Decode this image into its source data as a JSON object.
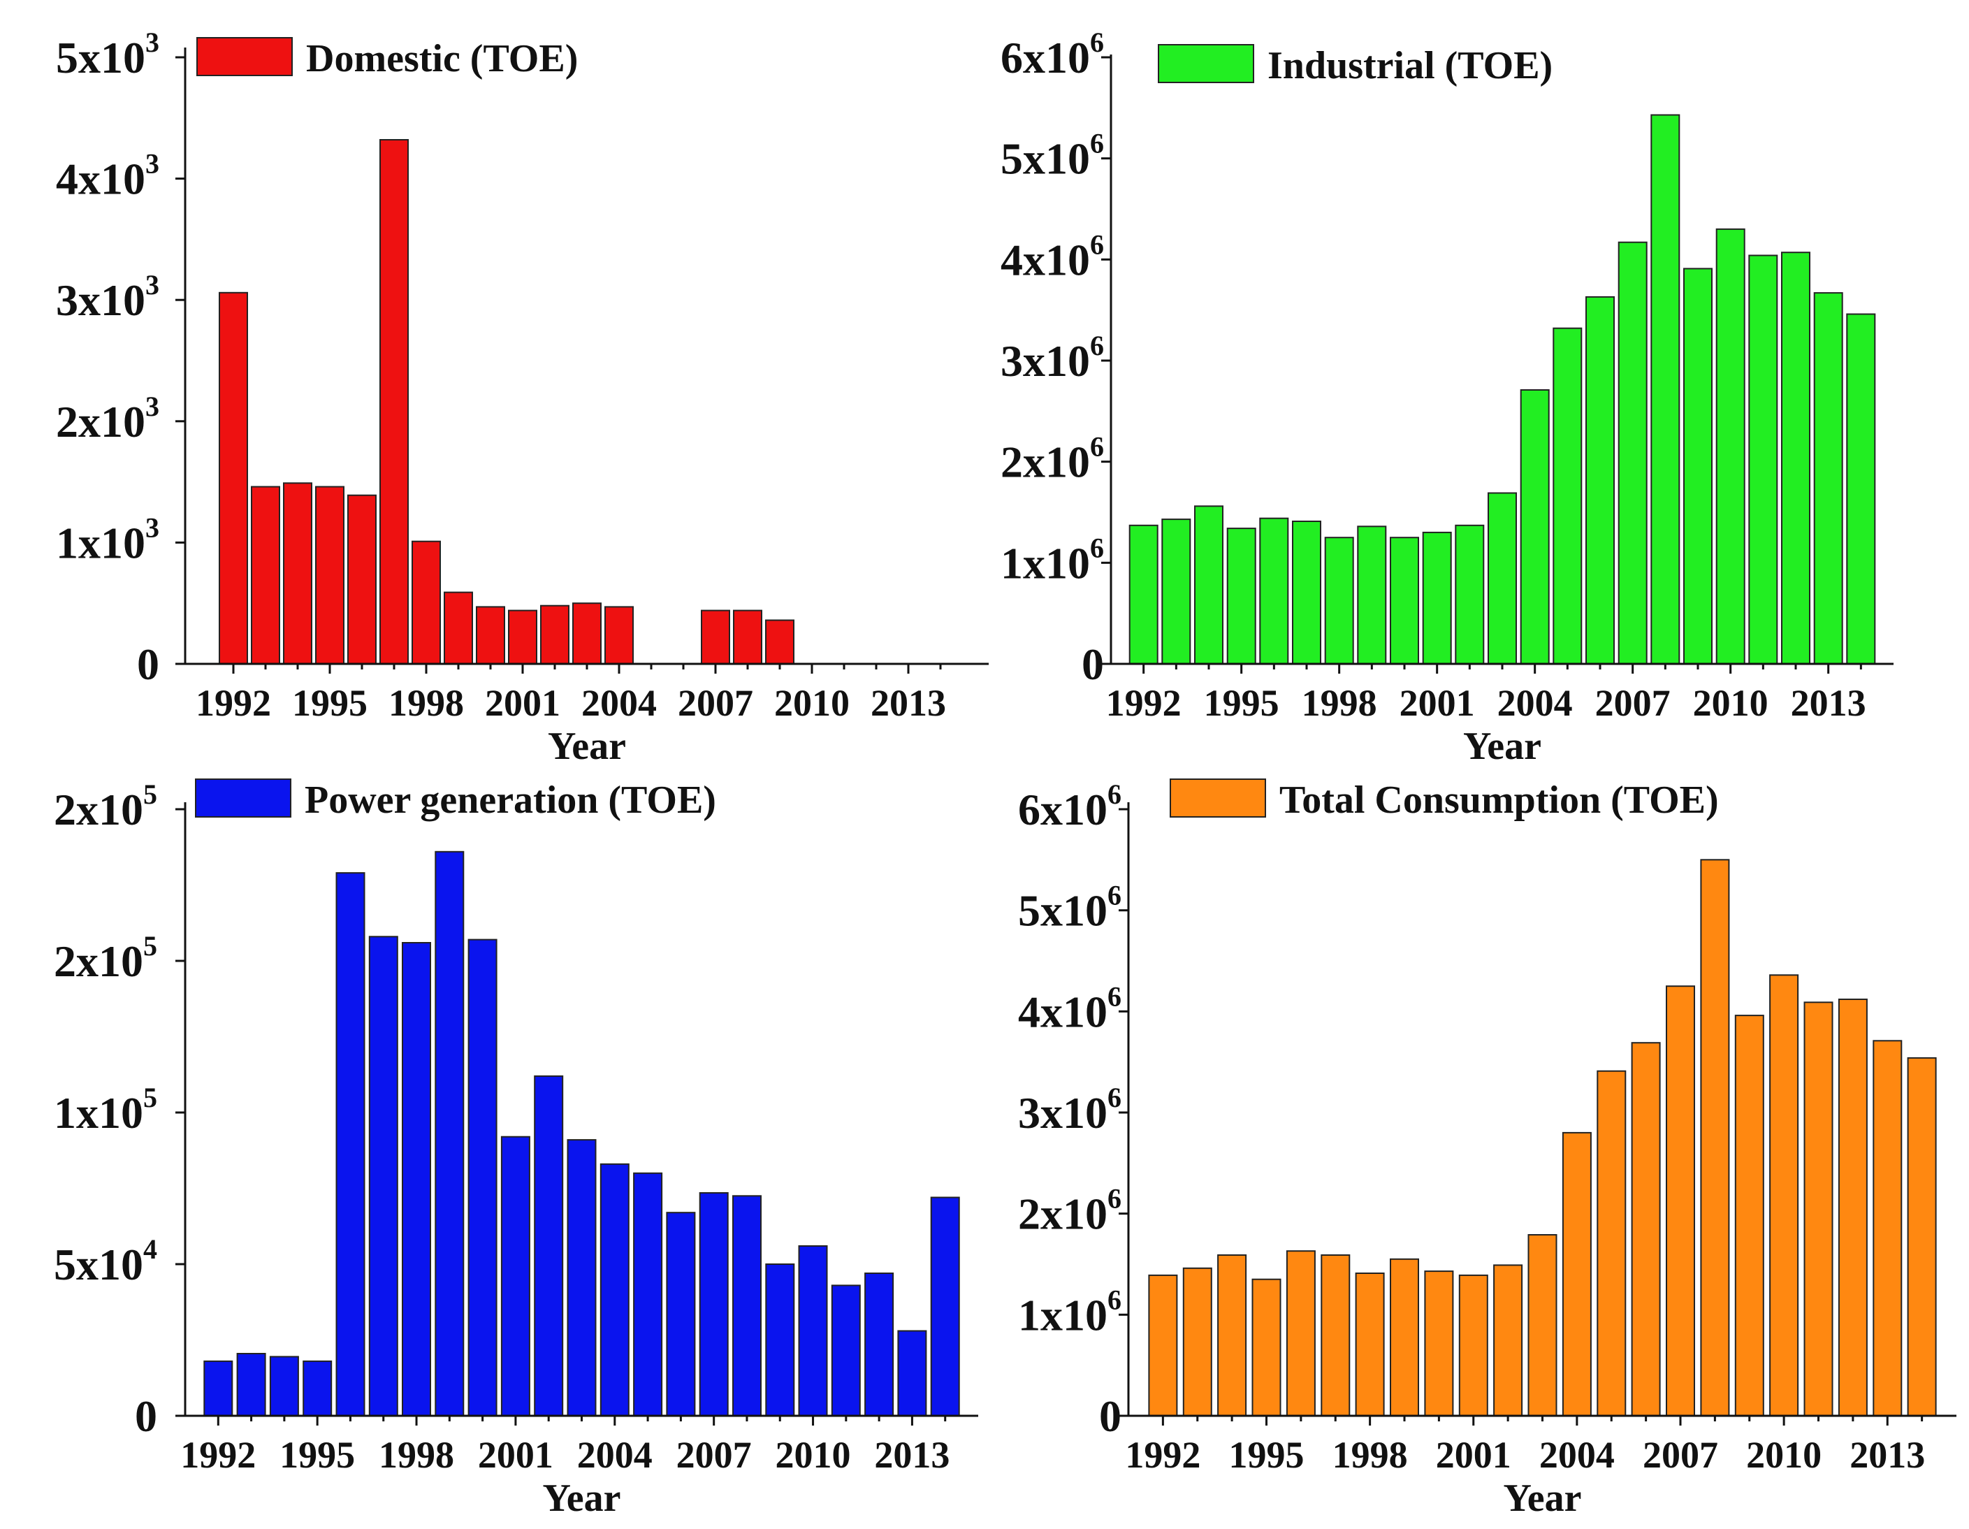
{
  "chart_data": [
    {
      "id": "domestic",
      "type": "bar",
      "legend": "Domestic (TOE)",
      "color": "#ee1111",
      "xlabel": "Year",
      "x_tick_labels": [
        "1992",
        "1995",
        "1998",
        "2001",
        "2004",
        "2007",
        "2010",
        "2013"
      ],
      "y_tick_labels": [
        {
          "v": 0,
          "base": "0",
          "exp": ""
        },
        {
          "v": 1000,
          "base": "1x10",
          "exp": "3"
        },
        {
          "v": 2000,
          "base": "2x10",
          "exp": "3"
        },
        {
          "v": 3000,
          "base": "3x10",
          "exp": "3"
        },
        {
          "v": 4000,
          "base": "4x10",
          "exp": "3"
        },
        {
          "v": 5000,
          "base": "5x10",
          "exp": "3"
        }
      ],
      "ylim": [
        0,
        5000
      ],
      "xlim": [
        1990.5,
        2015.5
      ],
      "x": [
        1992,
        1993,
        1994,
        1995,
        1996,
        1997,
        1998,
        1999,
        2000,
        2001,
        2002,
        2003,
        2004,
        2005,
        2006,
        2007,
        2008,
        2009,
        2010,
        2011,
        2012,
        2013,
        2014
      ],
      "values": [
        3060,
        1460,
        1490,
        1460,
        1390,
        4320,
        1010,
        590,
        470,
        440,
        480,
        500,
        470,
        0,
        0,
        440,
        440,
        360,
        0,
        0,
        0,
        0,
        0
      ]
    },
    {
      "id": "industrial",
      "type": "bar",
      "legend": "Industrial (TOE)",
      "color": "#22ee22",
      "xlabel": "Year",
      "x_tick_labels": [
        "1992",
        "1995",
        "1998",
        "2001",
        "2004",
        "2007",
        "2010",
        "2013"
      ],
      "y_tick_labels": [
        {
          "v": 0,
          "base": "0",
          "exp": ""
        },
        {
          "v": 1000000,
          "base": "1x10",
          "exp": "6"
        },
        {
          "v": 2000000,
          "base": "2x10",
          "exp": "6"
        },
        {
          "v": 3000000,
          "base": "3x10",
          "exp": "6"
        },
        {
          "v": 4000000,
          "base": "4x10",
          "exp": "6"
        },
        {
          "v": 5000000,
          "base": "5x10",
          "exp": "6"
        },
        {
          "v": 6000000,
          "base": "6x10",
          "exp": "6"
        }
      ],
      "ylim": [
        0,
        6000000
      ],
      "xlim": [
        1991.0,
        2015.0
      ],
      "x": [
        1992,
        1993,
        1994,
        1995,
        1996,
        1997,
        1998,
        1999,
        2000,
        2001,
        2002,
        2003,
        2004,
        2005,
        2006,
        2007,
        2008,
        2009,
        2010,
        2011,
        2012,
        2013,
        2014
      ],
      "values": [
        1370000,
        1430000,
        1560000,
        1340000,
        1440000,
        1410000,
        1250000,
        1360000,
        1250000,
        1300000,
        1370000,
        1690000,
        2710000,
        3320000,
        3630000,
        4170000,
        5430000,
        3910000,
        4300000,
        4040000,
        4070000,
        3670000,
        3460000
      ]
    },
    {
      "id": "power",
      "type": "bar",
      "legend": "Power generation (TOE)",
      "color": "#0a14ee",
      "xlabel": "Year",
      "x_tick_labels": [
        "1992",
        "1995",
        "1998",
        "2001",
        "2004",
        "2007",
        "2010",
        "2013"
      ],
      "y_tick_labels": [
        {
          "v": 0,
          "base": "0",
          "exp": ""
        },
        {
          "v": 50000,
          "base": "5x10",
          "exp": "4"
        },
        {
          "v": 100000,
          "base": "1x10",
          "exp": "5"
        },
        {
          "v": 150000,
          "base": "2x10",
          "exp": "5"
        },
        {
          "v": 200000,
          "base": "2x10",
          "exp": "5"
        }
      ],
      "ylim": [
        0,
        200000
      ],
      "xlim": [
        1991.0,
        2015.0
      ],
      "x": [
        1992,
        1993,
        1994,
        1995,
        1996,
        1997,
        1998,
        1999,
        2000,
        2001,
        2002,
        2003,
        2004,
        2005,
        2006,
        2007,
        2008,
        2009,
        2010,
        2011,
        2012,
        2013,
        2014
      ],
      "values": [
        18000,
        20500,
        19500,
        18000,
        179000,
        158000,
        156000,
        186000,
        157000,
        92000,
        112000,
        91000,
        83000,
        80000,
        67000,
        73500,
        72500,
        50000,
        56000,
        43000,
        47000,
        28000,
        72000
      ]
    },
    {
      "id": "total",
      "type": "bar",
      "legend": "Total Consumption (TOE)",
      "color": "#ff8811",
      "xlabel": "Year",
      "x_tick_labels": [
        "1992",
        "1995",
        "1998",
        "2001",
        "2004",
        "2007",
        "2010",
        "2013"
      ],
      "y_tick_labels": [
        {
          "v": 0,
          "base": "0",
          "exp": ""
        },
        {
          "v": 1000000,
          "base": "1x10",
          "exp": "6"
        },
        {
          "v": 2000000,
          "base": "2x10",
          "exp": "6"
        },
        {
          "v": 3000000,
          "base": "3x10",
          "exp": "6"
        },
        {
          "v": 4000000,
          "base": "4x10",
          "exp": "6"
        },
        {
          "v": 5000000,
          "base": "5x10",
          "exp": "6"
        },
        {
          "v": 6000000,
          "base": "6x10",
          "exp": "6"
        }
      ],
      "ylim": [
        0,
        6000000
      ],
      "xlim": [
        1991.0,
        2015.0
      ],
      "x": [
        1992,
        1993,
        1994,
        1995,
        1996,
        1997,
        1998,
        1999,
        2000,
        2001,
        2002,
        2003,
        2004,
        2005,
        2006,
        2007,
        2008,
        2009,
        2010,
        2011,
        2012,
        2013,
        2014
      ],
      "values": [
        1390000,
        1460000,
        1590000,
        1350000,
        1630000,
        1590000,
        1410000,
        1550000,
        1430000,
        1390000,
        1490000,
        1790000,
        2800000,
        3410000,
        3690000,
        4250000,
        5500000,
        3960000,
        4360000,
        4090000,
        4120000,
        3710000,
        3540000
      ]
    }
  ]
}
